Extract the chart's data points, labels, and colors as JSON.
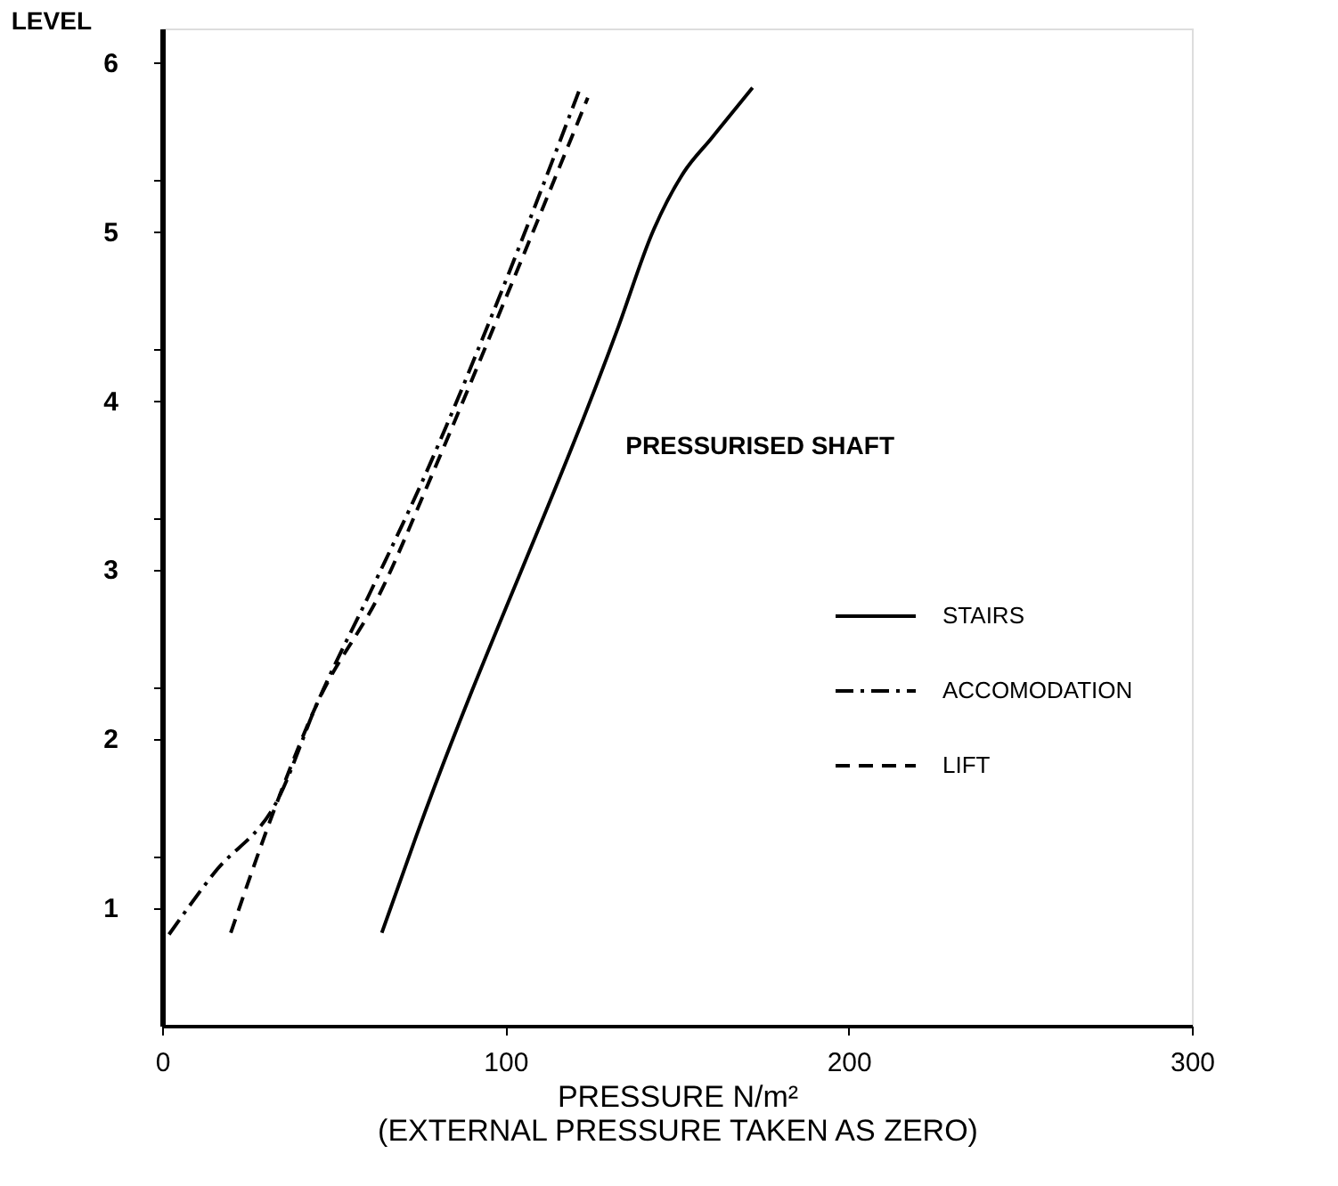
{
  "chart_data": {
    "type": "line",
    "xlabel": "PRESSURE    N/m²",
    "ylabel": "LEVEL",
    "annotations": [
      "(EXTERNAL PRESSURE TAKEN AS ZERO)",
      "PRESSURISED SHAFT"
    ],
    "xlim": [
      0,
      300
    ],
    "xticks": [
      0,
      100,
      200,
      300
    ],
    "ylim": [
      0.3,
      6.2
    ],
    "yticks": [
      1,
      2,
      3,
      4,
      5,
      6,
      {
        "value": 1.3,
        "label": null
      },
      {
        "value": 2.3,
        "label": null
      },
      {
        "value": 3.3,
        "label": null
      },
      {
        "value": 4.3,
        "label": null
      },
      {
        "value": 5.3,
        "label": null
      }
    ],
    "grid": false,
    "legend": "bottom right",
    "marker": "none",
    "series": [
      {
        "name": "STAIRS",
        "color": "#000000",
        "line_style": "solid",
        "x": [
          64,
          74,
          133,
          143,
          152,
          160,
          172
        ],
        "values": [
          0.85,
          1.42,
          4.44,
          5.0,
          5.35,
          5.55,
          5.85
        ]
      },
      {
        "name": "ACCOMODATION",
        "color": "#000000",
        "line_style": "dashdot",
        "x": [
          2,
          15,
          34,
          45,
          61,
          76,
          98,
          122
        ],
        "values": [
          0.84,
          1.2,
          1.65,
          2.2,
          2.88,
          3.53,
          4.6,
          5.86
        ]
      },
      {
        "name": "LIFT",
        "color": "#000000",
        "line_style": "dashed",
        "x": [
          20,
          34,
          45,
          64,
          78,
          100,
          124
        ],
        "values": [
          0.85,
          1.65,
          2.2,
          2.88,
          3.53,
          4.6,
          5.79
        ]
      }
    ]
  }
}
